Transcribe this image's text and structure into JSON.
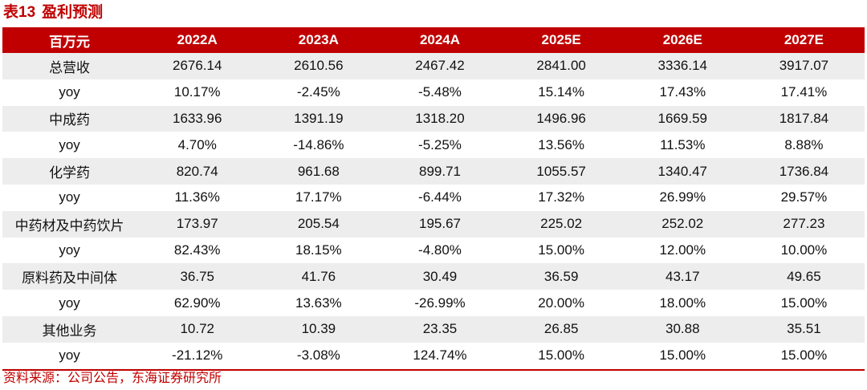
{
  "title": {
    "number": "表13",
    "text": "盈利预测"
  },
  "table": {
    "columns": [
      "百万元",
      "2022A",
      "2023A",
      "2024A",
      "2025E",
      "2026E",
      "2027E"
    ],
    "rows": [
      {
        "label": "总营收",
        "values": [
          "2676.14",
          "2610.56",
          "2467.42",
          "2841.00",
          "3336.14",
          "3917.07"
        ]
      },
      {
        "label": "yoy",
        "values": [
          "10.17%",
          "-2.45%",
          "-5.48%",
          "15.14%",
          "17.43%",
          "17.41%"
        ]
      },
      {
        "label": "中成药",
        "values": [
          "1633.96",
          "1391.19",
          "1318.20",
          "1496.96",
          "1669.59",
          "1817.84"
        ]
      },
      {
        "label": "yoy",
        "values": [
          "4.70%",
          "-14.86%",
          "-5.25%",
          "13.56%",
          "11.53%",
          "8.88%"
        ]
      },
      {
        "label": "化学药",
        "values": [
          "820.74",
          "961.68",
          "899.71",
          "1055.57",
          "1340.47",
          "1736.84"
        ]
      },
      {
        "label": "yoy",
        "values": [
          "11.36%",
          "17.17%",
          "-6.44%",
          "17.32%",
          "26.99%",
          "29.57%"
        ]
      },
      {
        "label": "中药材及中药饮片",
        "values": [
          "173.97",
          "205.54",
          "195.67",
          "225.02",
          "252.02",
          "277.23"
        ]
      },
      {
        "label": "yoy",
        "values": [
          "82.43%",
          "18.15%",
          "-4.80%",
          "15.00%",
          "12.00%",
          "10.00%"
        ]
      },
      {
        "label": "原料药及中间体",
        "values": [
          "36.75",
          "41.76",
          "30.49",
          "36.59",
          "43.17",
          "49.65"
        ]
      },
      {
        "label": "yoy",
        "values": [
          "62.90%",
          "13.63%",
          "-26.99%",
          "20.00%",
          "18.00%",
          "15.00%"
        ]
      },
      {
        "label": "其他业务",
        "values": [
          "10.72",
          "10.39",
          "23.35",
          "26.85",
          "30.88",
          "35.51"
        ]
      },
      {
        "label": "yoy",
        "values": [
          "-21.12%",
          "-3.08%",
          "124.74%",
          "15.00%",
          "15.00%",
          "15.00%"
        ]
      }
    ]
  },
  "source": "资料来源：公司公告，东海证券研究所",
  "colors": {
    "accent": "#c00000",
    "row_shade": "#ededed"
  }
}
